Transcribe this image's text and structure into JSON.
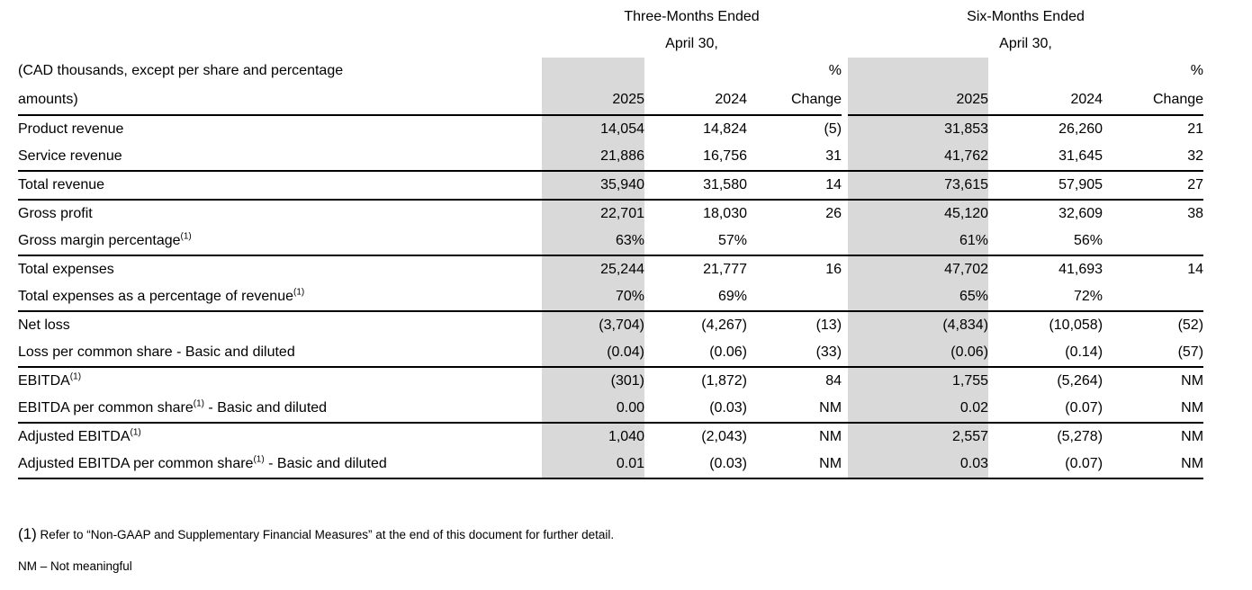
{
  "table": {
    "shading_color": "#d9d9d9",
    "periods": [
      {
        "title": "Three-Months Ended",
        "subtitle": "April 30,"
      },
      {
        "title": "Six-Months Ended",
        "subtitle": "April 30,"
      }
    ],
    "unit_note_line1": "(CAD thousands, except per share and percentage",
    "unit_note_line2": "amounts)",
    "col_headers": {
      "percent": "%",
      "change": "Change",
      "y2025": "2025",
      "y2024": "2024"
    },
    "rows": [
      {
        "label": {
          "pre": "Product revenue",
          "sup": "",
          "post": ""
        },
        "values": [
          "14,054",
          "14,824",
          "(5)",
          "31,853",
          "26,260",
          "21"
        ],
        "rule": "none"
      },
      {
        "label": {
          "pre": "Service revenue",
          "sup": "",
          "post": ""
        },
        "values": [
          "21,886",
          "16,756",
          "31",
          "41,762",
          "31,645",
          "32"
        ],
        "rule": "mid"
      },
      {
        "label": {
          "pre": "Total revenue",
          "sup": "",
          "post": ""
        },
        "values": [
          "35,940",
          "31,580",
          "14",
          "73,615",
          "57,905",
          "27"
        ],
        "rule": "mid"
      },
      {
        "label": {
          "pre": "Gross profit",
          "sup": "",
          "post": ""
        },
        "values": [
          "22,701",
          "18,030",
          "26",
          "45,120",
          "32,609",
          "38"
        ],
        "rule": "none"
      },
      {
        "label": {
          "pre": "Gross margin percentage",
          "sup": "(1)",
          "post": ""
        },
        "values": [
          "63%",
          "57%",
          "",
          "61%",
          "56%",
          ""
        ],
        "rule": "mid"
      },
      {
        "label": {
          "pre": "Total expenses",
          "sup": "",
          "post": ""
        },
        "values": [
          "25,244",
          "21,777",
          "16",
          "47,702",
          "41,693",
          "14"
        ],
        "rule": "none"
      },
      {
        "label": {
          "pre": "Total expenses as a percentage of revenue",
          "sup": "(1)",
          "post": ""
        },
        "values": [
          "70%",
          "69%",
          "",
          "65%",
          "72%",
          ""
        ],
        "rule": "mid"
      },
      {
        "label": {
          "pre": "Net loss",
          "sup": "",
          "post": ""
        },
        "values": [
          "(3,704)",
          "(4,267)",
          "(13)",
          "(4,834)",
          "(10,058)",
          "(52)"
        ],
        "rule": "none"
      },
      {
        "label": {
          "pre": "Loss per common share - Basic and diluted",
          "sup": "",
          "post": ""
        },
        "values": [
          "(0.04)",
          "(0.06)",
          "(33)",
          "(0.06)",
          "(0.14)",
          "(57)"
        ],
        "rule": "mid"
      },
      {
        "label": {
          "pre": "EBITDA",
          "sup": "(1)",
          "post": ""
        },
        "values": [
          "(301)",
          "(1,872)",
          "84",
          "1,755",
          "(5,264)",
          "NM"
        ],
        "rule": "none"
      },
      {
        "label": {
          "pre": "EBITDA per common share",
          "sup": "(1)",
          "post": " - Basic and diluted"
        },
        "values": [
          "0.00",
          "(0.03)",
          "NM",
          "0.02",
          "(0.07)",
          "NM"
        ],
        "rule": "mid"
      },
      {
        "label": {
          "pre": "Adjusted EBITDA",
          "sup": "(1)",
          "post": ""
        },
        "values": [
          "1,040",
          "(2,043)",
          "NM",
          "2,557",
          "(5,278)",
          "NM"
        ],
        "rule": "none"
      },
      {
        "label": {
          "pre": "Adjusted EBITDA per common share",
          "sup": "(1)",
          "post": " - Basic and diluted"
        },
        "values": [
          "0.01",
          "(0.03)",
          "NM",
          "0.03",
          "(0.07)",
          "NM"
        ],
        "rule": "bottom"
      }
    ]
  },
  "footnotes": {
    "note1_marker": "(1)",
    "note1_text": " Refer to “Non-GAAP and Supplementary Financial Measures” at the end of this document for further detail.",
    "note2": "NM – Not meaningful"
  }
}
